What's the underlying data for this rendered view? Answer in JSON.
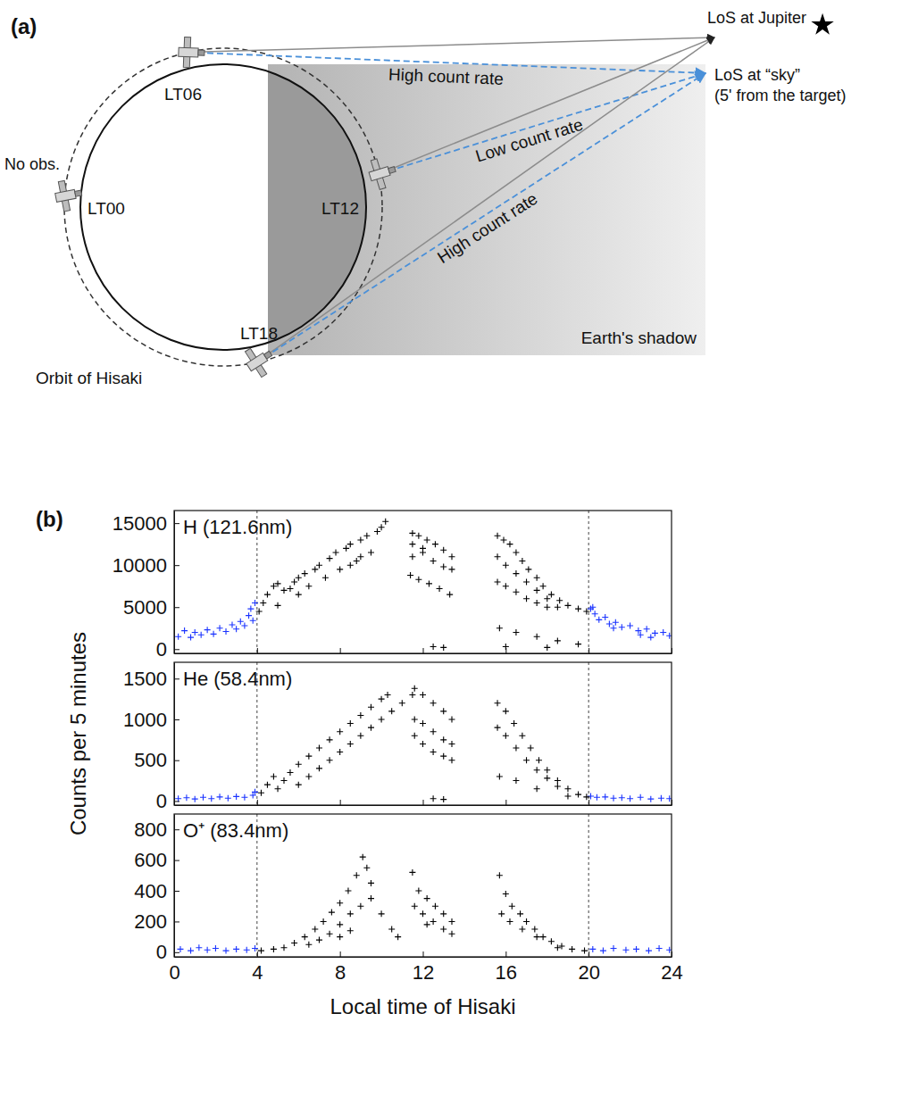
{
  "diagram": {
    "panel_label": "(a)",
    "local_times": [
      "LT06",
      "LT00",
      "LT12",
      "LT18"
    ],
    "no_obs": "No obs.",
    "orbit_label": "Orbit of Hisaki",
    "rates": [
      "High count rate",
      "Low count rate",
      "High count rate"
    ],
    "shadow_label": "Earth's shadow",
    "los_jupiter": "LoS at Jupiter",
    "los_sky": "LoS at “sky”",
    "los_sky_note": "(5' from the target)"
  },
  "figure": {
    "panel_label": "(b)",
    "ylabel": "Counts per 5 minutes"
  },
  "chart_data": [
    {
      "type": "scatter",
      "title": "H (121.6nm)",
      "xlim": [
        0,
        24
      ],
      "xticks": [
        0,
        4,
        8,
        12,
        16,
        20,
        24
      ],
      "ylim": [
        -500,
        16500
      ],
      "yticks": [
        0,
        5000,
        10000,
        15000
      ],
      "tick_labels": "y",
      "vlines": [
        4,
        20
      ],
      "series": [
        {
          "color": "#1a33ff",
          "marker": "plus",
          "x": [
            0.2,
            0.5,
            0.8,
            1.0,
            1.3,
            1.6,
            1.9,
            2.2,
            2.5,
            2.8,
            3.0,
            3.2,
            3.4,
            3.6,
            3.8,
            3.9,
            3.7,
            20.1,
            20.3,
            20.5,
            20.8,
            21.0,
            21.3,
            21.6,
            22.0,
            22.4,
            22.8,
            23.2,
            23.6,
            23.9,
            20.2,
            21.2,
            22.5,
            23.0
          ],
          "values": [
            1500,
            2200,
            1400,
            2000,
            1700,
            2300,
            1800,
            2500,
            2100,
            2900,
            2400,
            3300,
            2800,
            4000,
            3400,
            5500,
            4800,
            4800,
            4200,
            3500,
            3800,
            3000,
            3200,
            2600,
            2800,
            2200,
            2400,
            1900,
            2000,
            1600,
            5000,
            2500,
            1700,
            1400
          ]
        },
        {
          "color": "#000000",
          "marker": "plus",
          "x": [
            4.1,
            4.3,
            4.5,
            4.8,
            5.0,
            5.3,
            5.6,
            5.8,
            6.0,
            6.3,
            6.5,
            6.8,
            7.0,
            7.3,
            7.5,
            7.8,
            8.0,
            8.3,
            8.5,
            8.8,
            9.0,
            9.3,
            9.5,
            9.8,
            10.0,
            10.2,
            8.5,
            9.0,
            6.0,
            5.0,
            11.5,
            11.8,
            12.2,
            12.6,
            13.0,
            13.4,
            11.5,
            12.0,
            12.5,
            13.0,
            13.4,
            11.4,
            11.8,
            12.3,
            12.8,
            13.3,
            11.5,
            12.0,
            12.5,
            13.0,
            15.6,
            15.9,
            16.2,
            16.5,
            16.8,
            17.1,
            17.5,
            17.8,
            18.2,
            18.6,
            19.0,
            19.5,
            19.9,
            15.6,
            16.0,
            16.5,
            17.0,
            17.5,
            18.0,
            18.5,
            15.6,
            16.0,
            16.5,
            17.0,
            17.5,
            18.0,
            15.7,
            16.5,
            17.5,
            18.5,
            19.5,
            16.0,
            18.0
          ],
          "values": [
            4500,
            5500,
            6500,
            7500,
            7800,
            7000,
            7200,
            8000,
            8500,
            9000,
            7500,
            9500,
            10000,
            8500,
            10800,
            11500,
            9500,
            12000,
            12500,
            10500,
            13000,
            13500,
            11500,
            14000,
            14500,
            15200,
            10000,
            11000,
            6500,
            5200,
            13800,
            13500,
            13000,
            12500,
            11800,
            11000,
            12500,
            11500,
            10500,
            9800,
            9500,
            8800,
            8300,
            7800,
            7200,
            6500,
            11000,
            12000,
            300,
            200,
            13500,
            13000,
            12500,
            11500,
            10500,
            9500,
            8500,
            7500,
            6500,
            5800,
            5200,
            4800,
            4500,
            11000,
            10000,
            9000,
            8000,
            7000,
            6000,
            5000,
            8000,
            7500,
            6800,
            6000,
            5500,
            5000,
            2500,
            2000,
            1500,
            1000,
            600,
            300,
            200
          ]
        }
      ]
    },
    {
      "type": "scatter",
      "title": "He (58.4nm)",
      "xlim": [
        0,
        24
      ],
      "xticks": [
        0,
        4,
        8,
        12,
        16,
        20,
        24
      ],
      "ylim": [
        -50,
        1700
      ],
      "yticks": [
        0,
        500,
        1000,
        1500
      ],
      "tick_labels": "y",
      "vlines": [
        4,
        20
      ],
      "series": [
        {
          "color": "#1a33ff",
          "marker": "plus",
          "x": [
            0.2,
            0.6,
            1.0,
            1.4,
            1.8,
            2.2,
            2.6,
            3.0,
            3.4,
            3.8,
            3.9,
            20.1,
            20.4,
            20.8,
            21.2,
            21.6,
            22.0,
            22.5,
            23.0,
            23.5,
            23.9
          ],
          "values": [
            30,
            40,
            25,
            45,
            30,
            50,
            35,
            55,
            45,
            70,
            110,
            60,
            45,
            50,
            35,
            40,
            30,
            45,
            25,
            35,
            30
          ]
        },
        {
          "color": "#000000",
          "marker": "plus",
          "x": [
            4.2,
            4.5,
            4.8,
            5.0,
            5.3,
            5.6,
            6.0,
            6.0,
            6.5,
            6.5,
            7.0,
            7.0,
            7.5,
            7.5,
            8.0,
            8.0,
            8.5,
            8.5,
            9.0,
            9.0,
            9.5,
            9.5,
            10.0,
            10.0,
            10.3,
            10.5,
            11.0,
            11.5,
            11.6,
            12.0,
            12.5,
            13.0,
            13.4,
            11.6,
            12.0,
            12.5,
            13.0,
            13.4,
            11.6,
            12.0,
            12.5,
            13.0,
            13.4,
            12.5,
            13.0,
            15.6,
            16.0,
            16.4,
            16.8,
            17.2,
            17.6,
            18.0,
            18.5,
            19.0,
            19.5,
            19.9,
            15.6,
            16.0,
            16.5,
            17.0,
            17.5,
            18.0,
            18.5,
            15.7,
            16.5,
            17.5,
            19.0
          ],
          "values": [
            100,
            200,
            300,
            150,
            250,
            350,
            450,
            200,
            550,
            300,
            650,
            400,
            750,
            500,
            850,
            600,
            950,
            700,
            1050,
            800,
            1150,
            900,
            1250,
            1000,
            1300,
            1100,
            1200,
            1300,
            1380,
            1300,
            1200,
            1100,
            1000,
            1000,
            950,
            850,
            750,
            700,
            800,
            700,
            600,
            550,
            500,
            30,
            20,
            1200,
            1100,
            950,
            800,
            650,
            500,
            380,
            250,
            150,
            80,
            50,
            900,
            800,
            650,
            500,
            380,
            280,
            180,
            300,
            250,
            150,
            60
          ]
        }
      ]
    },
    {
      "type": "scatter",
      "title": "O⁺ (83.4nm)",
      "xlabel": "Local time of Hisaki",
      "xlim": [
        0,
        24
      ],
      "xticks": [
        0,
        4,
        8,
        12,
        16,
        20,
        24
      ],
      "ylim": [
        -30,
        900
      ],
      "yticks": [
        0,
        200,
        400,
        600,
        800
      ],
      "vlines": [
        4,
        20
      ],
      "series": [
        {
          "color": "#1a33ff",
          "marker": "plus",
          "x": [
            0.3,
            0.8,
            1.2,
            1.6,
            2.0,
            2.5,
            3.0,
            3.5,
            3.9,
            20.2,
            20.7,
            21.2,
            21.8,
            22.3,
            22.9,
            23.4,
            23.9
          ],
          "values": [
            20,
            10,
            30,
            15,
            25,
            10,
            20,
            15,
            25,
            20,
            10,
            25,
            15,
            20,
            10,
            25,
            15
          ]
        },
        {
          "color": "#000000",
          "marker": "plus",
          "x": [
            4.2,
            4.8,
            5.3,
            5.8,
            6.3,
            6.8,
            7.2,
            7.6,
            8.0,
            8.4,
            8.8,
            9.1,
            9.3,
            6.5,
            7.0,
            7.5,
            8.0,
            8.5,
            9.0,
            9.5,
            10.0,
            10.5,
            10.8,
            9.5,
            8.0,
            8.5,
            11.5,
            11.8,
            12.2,
            12.6,
            13.0,
            13.4,
            11.6,
            12.0,
            12.5,
            13.0,
            13.4,
            12.2,
            15.7,
            16.0,
            16.3,
            16.7,
            17.0,
            17.4,
            17.8,
            18.2,
            18.7,
            19.2,
            19.8,
            15.8,
            16.2,
            16.8,
            17.5,
            18.5
          ],
          "values": [
            10,
            20,
            30,
            60,
            100,
            150,
            200,
            260,
            320,
            400,
            500,
            620,
            550,
            50,
            80,
            120,
            180,
            250,
            300,
            350,
            250,
            150,
            100,
            450,
            100,
            140,
            520,
            400,
            350,
            300,
            250,
            200,
            300,
            250,
            200,
            150,
            120,
            180,
            500,
            380,
            300,
            250,
            200,
            150,
            100,
            70,
            40,
            20,
            10,
            250,
            200,
            150,
            100,
            30
          ]
        }
      ]
    }
  ]
}
